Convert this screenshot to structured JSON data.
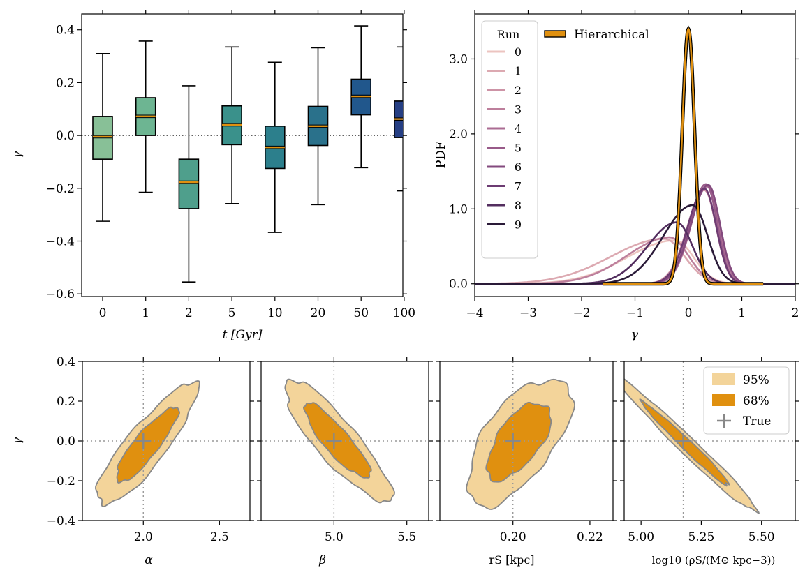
{
  "chart_data": [
    {
      "type": "box",
      "title": "",
      "xlabel": "t [Gyr]",
      "ylabel": "γ",
      "ylim": [
        -0.61,
        0.46
      ],
      "yticks": [
        -0.6,
        -0.4,
        -0.2,
        0.0,
        0.2,
        0.4
      ],
      "ytick_labels": [
        "−0.6",
        "−0.4",
        "−0.2",
        "0.0",
        "0.2",
        "0.4"
      ],
      "reference_line": 0.0,
      "categories": [
        "0",
        "1",
        "2",
        "5",
        "10",
        "20",
        "50",
        "100"
      ],
      "boxes": [
        {
          "cat": "0",
          "whislo": -0.325,
          "q1": -0.09,
          "med": -0.005,
          "q3": 0.072,
          "whishi": 0.31,
          "color": "#88c097"
        },
        {
          "cat": "1",
          "whislo": -0.215,
          "q1": 0.0,
          "med": 0.072,
          "q3": 0.143,
          "whishi": 0.357,
          "color": "#6db592"
        },
        {
          "cat": "2",
          "whislo": -0.555,
          "q1": -0.277,
          "med": -0.177,
          "q3": -0.09,
          "whishi": 0.188,
          "color": "#4f9f8c"
        },
        {
          "cat": "5",
          "whislo": -0.258,
          "q1": -0.035,
          "med": 0.04,
          "q3": 0.112,
          "whishi": 0.335,
          "color": "#3a918b"
        },
        {
          "cat": "10",
          "whislo": -0.367,
          "q1": -0.125,
          "med": -0.045,
          "q3": 0.035,
          "whishi": 0.277,
          "color": "#2c7f8c"
        },
        {
          "cat": "20",
          "whislo": -0.262,
          "q1": -0.038,
          "med": 0.035,
          "q3": 0.11,
          "whishi": 0.332,
          "color": "#2a718b"
        },
        {
          "cat": "50",
          "whislo": -0.122,
          "q1": 0.078,
          "med": 0.148,
          "q3": 0.213,
          "whishi": 0.415,
          "color": "#21578c"
        },
        {
          "cat": "100",
          "whislo": -0.21,
          "q1": -0.008,
          "med": 0.062,
          "q3": 0.13,
          "whishi": 0.335,
          "color": "#263f84"
        }
      ],
      "median_color": "#e0900f"
    },
    {
      "type": "line",
      "xlabel": "γ",
      "ylabel": "PDF",
      "xlim": [
        -4,
        2
      ],
      "ylim": [
        -0.17,
        3.6
      ],
      "xticks": [
        -4,
        -3,
        -2,
        -1,
        0,
        1,
        2
      ],
      "xtick_labels": [
        "−4",
        "−3",
        "−2",
        "−1",
        "0",
        "1",
        "2"
      ],
      "yticks": [
        0,
        1,
        2,
        3
      ],
      "ytick_labels": [
        "0.0",
        "1.0",
        "2.0",
        "3.0"
      ],
      "legend_title": "Run",
      "legend_position": "top-left",
      "series": [
        {
          "name": "0",
          "color": "#ecc4c0",
          "mu": -0.25,
          "sl": 0.9,
          "sr": 0.35,
          "peak": 0.58
        },
        {
          "name": "1",
          "color": "#dca9b1",
          "mu": -0.45,
          "sl": 1.0,
          "sr": 0.38,
          "peak": 0.6
        },
        {
          "name": "2",
          "color": "#cd93a6",
          "mu": 0.3,
          "sl": 0.32,
          "sr": 0.22,
          "peak": 1.25
        },
        {
          "name": "3",
          "color": "#bd7f9c",
          "mu": -0.35,
          "sl": 0.8,
          "sr": 0.35,
          "peak": 0.62
        },
        {
          "name": "4",
          "color": "#ab6c93",
          "mu": 0.35,
          "sl": 0.3,
          "sr": 0.22,
          "peak": 1.3
        },
        {
          "name": "5",
          "color": "#985a89",
          "mu": 0.33,
          "sl": 0.3,
          "sr": 0.21,
          "peak": 1.33
        },
        {
          "name": "6",
          "color": "#834a7e",
          "mu": 0.37,
          "sl": 0.32,
          "sr": 0.22,
          "peak": 1.32
        },
        {
          "name": "7",
          "color": "#6c3b72",
          "mu": 0.3,
          "sl": 0.31,
          "sr": 0.22,
          "peak": 1.27
        },
        {
          "name": "8",
          "color": "#532e5f",
          "mu": -0.22,
          "sl": 0.55,
          "sr": 0.3,
          "peak": 0.82
        },
        {
          "name": "9",
          "color": "#2a1a38",
          "mu": 0.08,
          "sl": 0.55,
          "sr": 0.28,
          "peak": 1.05
        }
      ],
      "hierarchical": {
        "name": "Hierarchical",
        "color": "#e0900f",
        "mu": 0.0,
        "sigma": 0.115,
        "peak": 3.4,
        "x_range": [
          -1.6,
          1.4
        ]
      }
    },
    {
      "type": "contour",
      "xlabel": "α",
      "ylabel": "γ",
      "xlim": [
        1.6,
        2.7
      ],
      "ylim": [
        -0.4,
        0.4
      ],
      "xticks": [
        2.0,
        2.5
      ],
      "xtick_labels": [
        "2.0",
        "2.5"
      ],
      "yticks": [
        -0.4,
        -0.2,
        0.0,
        0.2,
        0.4
      ],
      "ytick_labels": [
        "−0.4",
        "−0.2",
        "0.0",
        "0.2",
        "0.4"
      ],
      "true": [
        2.0,
        0.0
      ],
      "center": [
        2.02,
        -0.02
      ],
      "sx": 0.135,
      "sy": 0.125,
      "rho": 0.87
    },
    {
      "type": "contour",
      "xlabel": "β",
      "xlim": [
        4.5,
        5.65
      ],
      "ylim": [
        -0.4,
        0.4
      ],
      "xticks": [
        5.0,
        5.5
      ],
      "xtick_labels": [
        "5.0",
        "5.5"
      ],
      "true": [
        5.0,
        0.0
      ],
      "center": [
        5.02,
        0.0
      ],
      "sx": 0.15,
      "sy": 0.125,
      "rho": -0.87
    },
    {
      "type": "contour",
      "xlabel": "rS [kpc]",
      "xlim": [
        0.181,
        0.226
      ],
      "ylim": [
        -0.4,
        0.4
      ],
      "xticks": [
        0.2,
        0.22
      ],
      "xtick_labels": [
        "0.20",
        "0.22"
      ],
      "true": [
        0.2,
        0.0
      ],
      "center": [
        0.2015,
        0.0
      ],
      "sx": 0.0055,
      "sy": 0.13,
      "rho": 0.62
    },
    {
      "type": "contour",
      "xlabel": "log10 (ρS/(M⊙ kpc−3))",
      "xlim": [
        4.93,
        5.64
      ],
      "ylim": [
        -0.4,
        0.4
      ],
      "xticks": [
        5.0,
        5.25,
        5.5
      ],
      "xtick_labels": [
        "5.00",
        "5.25",
        "5.50"
      ],
      "true": [
        5.175,
        0.0
      ],
      "center": [
        5.19,
        -0.02
      ],
      "sx": 0.12,
      "sy": 0.14,
      "rho": -0.985,
      "legend": [
        "95%",
        "68%",
        "True"
      ]
    }
  ]
}
